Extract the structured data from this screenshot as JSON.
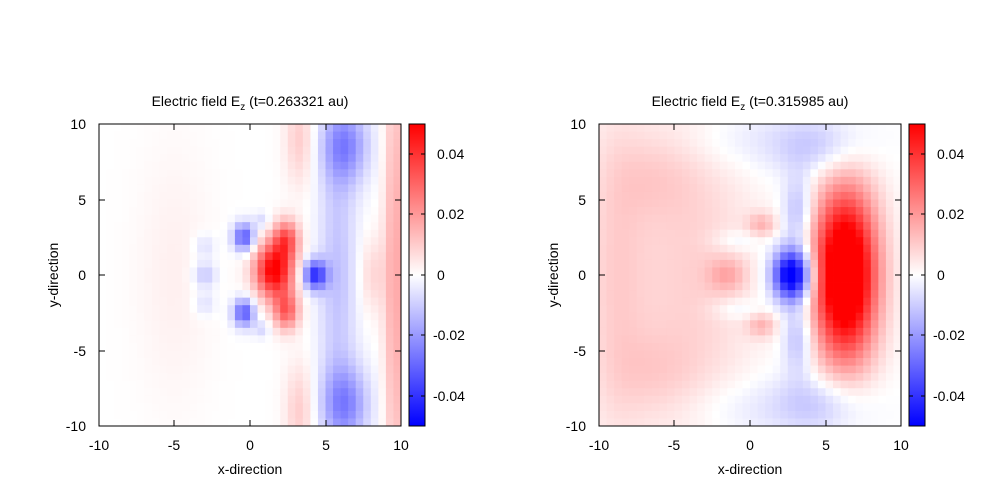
{
  "chart_data": [
    {
      "type": "heatmap",
      "title_prefix": "Electric field E",
      "title_sub": "z",
      "title_suffix": " (t=0.263321 au)",
      "xlabel": "x-direction",
      "ylabel": "y-direction",
      "xlim": [
        -10,
        10
      ],
      "ylim": [
        -10,
        10
      ],
      "xticks": [
        "-10",
        "-5",
        "0",
        "5",
        "10"
      ],
      "yticks": [
        "10",
        "5",
        "0",
        "-5",
        "-10"
      ],
      "color_range": [
        -0.05,
        0.05
      ],
      "colorbar_ticks": [
        "0.04",
        "0.02",
        "0",
        "-0.02",
        "-0.04"
      ],
      "colormap": {
        "low": "#0000ff",
        "mid": "#ffffff",
        "high": "#ff0000"
      },
      "features": [
        {
          "x": 1.6,
          "y": 0.3,
          "sx": 0.9,
          "sy": 1.3,
          "amp": 0.052
        },
        {
          "x": 2.4,
          "y": 2.4,
          "sx": 0.6,
          "sy": 0.9,
          "amp": 0.03
        },
        {
          "x": 2.4,
          "y": -2.4,
          "sx": 0.6,
          "sy": 0.9,
          "amp": 0.03
        },
        {
          "x": 4.3,
          "y": 0.0,
          "sx": 0.55,
          "sy": 0.7,
          "amp": -0.04
        },
        {
          "x": -0.4,
          "y": 2.5,
          "sx": 0.5,
          "sy": 0.65,
          "amp": -0.033
        },
        {
          "x": -0.4,
          "y": -2.5,
          "sx": 0.5,
          "sy": 0.65,
          "amp": -0.033
        },
        {
          "x": -3.0,
          "y": 0.0,
          "sx": 0.55,
          "sy": 0.6,
          "amp": -0.012
        },
        {
          "x": -3.0,
          "y": 1.9,
          "sx": 0.5,
          "sy": 0.6,
          "amp": -0.007
        },
        {
          "x": -3.0,
          "y": -1.9,
          "sx": 0.5,
          "sy": 0.6,
          "amp": -0.007
        },
        {
          "x": 0.8,
          "y": 3.6,
          "sx": 0.4,
          "sy": 0.4,
          "amp": -0.008
        },
        {
          "x": 0.8,
          "y": -3.6,
          "sx": 0.4,
          "sy": 0.4,
          "amp": -0.008
        },
        {
          "x": 6.3,
          "y": 8.6,
          "sx": 1.1,
          "sy": 1.8,
          "amp": -0.022
        },
        {
          "x": 6.3,
          "y": -8.6,
          "sx": 1.1,
          "sy": 1.8,
          "amp": -0.022
        },
        {
          "x": 5.8,
          "y": 0.0,
          "sx": 0.9,
          "sy": 7.0,
          "amp": -0.012
        },
        {
          "x": 9.6,
          "y": 0.0,
          "sx": 0.5,
          "sy": 12.0,
          "amp": 0.017
        },
        {
          "x": 8.1,
          "y": 0.0,
          "sx": 0.6,
          "sy": 1.8,
          "amp": 0.008
        },
        {
          "x": 3.3,
          "y": 9.0,
          "sx": 0.7,
          "sy": 2.2,
          "amp": 0.01
        },
        {
          "x": 3.3,
          "y": -9.0,
          "sx": 0.7,
          "sy": 2.2,
          "amp": 0.01
        },
        {
          "x": -5.0,
          "y": 0.0,
          "sx": 1.8,
          "sy": 6.0,
          "amp": 0.003
        }
      ]
    },
    {
      "type": "heatmap",
      "title_prefix": "Electric field E",
      "title_sub": "z",
      "title_suffix": " (t=0.315985 au)",
      "xlabel": "x-direction",
      "ylabel": "y-direction",
      "xlim": [
        -10,
        10
      ],
      "ylim": [
        -10,
        10
      ],
      "xticks": [
        "-10",
        "-5",
        "0",
        "5",
        "10"
      ],
      "yticks": [
        "10",
        "5",
        "0",
        "-5",
        "-10"
      ],
      "color_range": [
        -0.05,
        0.05
      ],
      "colorbar_ticks": [
        "0.04",
        "0.02",
        "0",
        "-0.02",
        "-0.04"
      ],
      "colormap": {
        "low": "#0000ff",
        "mid": "#ffffff",
        "high": "#ff0000"
      },
      "features": [
        {
          "x": 6.3,
          "y": 0.0,
          "sx": 1.5,
          "sy": 4.0,
          "amp": 0.07
        },
        {
          "x": 2.8,
          "y": 0.0,
          "sx": 0.9,
          "sy": 1.2,
          "amp": -0.06
        },
        {
          "x": 3.2,
          "y": 4.2,
          "sx": 0.7,
          "sy": 1.6,
          "amp": -0.015
        },
        {
          "x": 3.2,
          "y": -4.2,
          "sx": 0.7,
          "sy": 1.6,
          "amp": -0.015
        },
        {
          "x": 4.7,
          "y": 8.5,
          "sx": 2.2,
          "sy": 1.4,
          "amp": -0.012
        },
        {
          "x": 4.7,
          "y": -8.5,
          "sx": 2.2,
          "sy": 1.4,
          "amp": -0.012
        },
        {
          "x": 0.8,
          "y": 3.3,
          "sx": 0.7,
          "sy": 0.6,
          "amp": 0.013
        },
        {
          "x": 0.8,
          "y": -3.3,
          "sx": 0.7,
          "sy": 0.6,
          "amp": 0.013
        },
        {
          "x": -1.5,
          "y": 0.0,
          "sx": 0.9,
          "sy": 0.8,
          "amp": 0.012
        },
        {
          "x": -0.8,
          "y": 2.3,
          "sx": 1.3,
          "sy": 0.5,
          "amp": -0.006
        },
        {
          "x": -0.8,
          "y": -2.3,
          "sx": 1.3,
          "sy": 0.5,
          "amp": -0.006
        },
        {
          "x": -4.0,
          "y": 0.0,
          "sx": 3.0,
          "sy": 9.0,
          "amp": 0.009
        },
        {
          "x": -9.0,
          "y": 0.0,
          "sx": 1.5,
          "sy": 8.0,
          "amp": 0.008
        },
        {
          "x": -6.5,
          "y": 6.5,
          "sx": 2.0,
          "sy": 2.0,
          "amp": 0.005
        },
        {
          "x": -6.5,
          "y": -6.5,
          "sx": 2.0,
          "sy": 2.0,
          "amp": 0.005
        },
        {
          "x": -1.0,
          "y": 9.0,
          "sx": 3.0,
          "sy": 1.5,
          "amp": -0.005
        },
        {
          "x": -1.0,
          "y": -9.0,
          "sx": 3.0,
          "sy": 1.5,
          "amp": -0.005
        }
      ]
    }
  ]
}
